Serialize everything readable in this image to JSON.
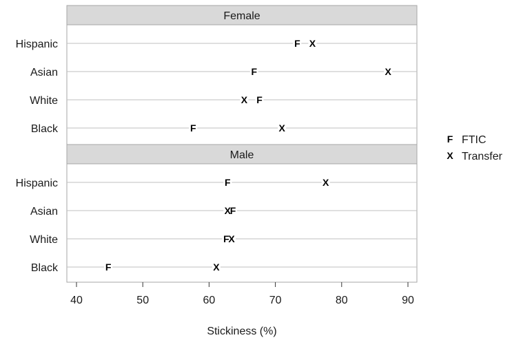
{
  "chart_data": {
    "type": "scatter",
    "xlabel": "Stickiness (%)",
    "xlim": [
      38.5,
      91.5
    ],
    "xticks": [
      40,
      50,
      60,
      70,
      80,
      90
    ],
    "categories": [
      "Hispanic",
      "Asian",
      "White",
      "Black"
    ],
    "panels": [
      {
        "title": "Female",
        "rows": [
          {
            "category": "Hispanic",
            "FTIC": 73.3,
            "Transfer": 75.6
          },
          {
            "category": "Asian",
            "FTIC": 66.8,
            "Transfer": 87.0
          },
          {
            "category": "White",
            "FTIC": 67.6,
            "Transfer": 65.3
          },
          {
            "category": "Black",
            "FTIC": 57.6,
            "Transfer": 71.0
          }
        ]
      },
      {
        "title": "Male",
        "rows": [
          {
            "category": "Hispanic",
            "FTIC": 62.8,
            "Transfer": 77.6
          },
          {
            "category": "Asian",
            "FTIC": 63.6,
            "Transfer": 62.8
          },
          {
            "category": "White",
            "FTIC": 62.6,
            "Transfer": 63.4
          },
          {
            "category": "Black",
            "FTIC": 44.8,
            "Transfer": 61.1
          }
        ]
      }
    ],
    "series": [
      {
        "name": "FTIC",
        "symbol": "F"
      },
      {
        "name": "Transfer",
        "symbol": "X"
      }
    ],
    "legend_position": "right",
    "colors": {
      "strip": "#d9d9d9",
      "line": "#bfbfbf",
      "frame": "#a6a6a6",
      "marker": "#000000"
    }
  }
}
